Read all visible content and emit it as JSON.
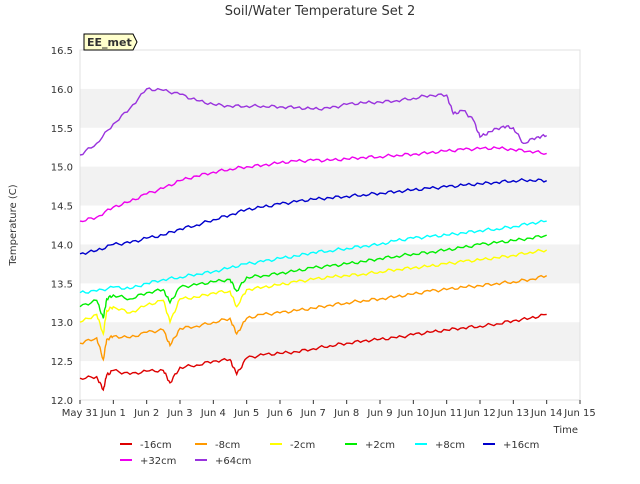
{
  "chart_data": {
    "type": "line",
    "title": "Soil/Water Temperature Set 2",
    "badge": "EE_met",
    "xlabel": "Time",
    "ylabel": "Temperature (C)",
    "xlim": [
      0,
      15
    ],
    "ylim": [
      12.0,
      16.5
    ],
    "grid": "alternating horizontal bands",
    "legend_position": "bottom",
    "x_ticks": [
      {
        "value": 0,
        "label": "May 31"
      },
      {
        "value": 1,
        "label": "Jun 1"
      },
      {
        "value": 2,
        "label": "Jun 2"
      },
      {
        "value": 3,
        "label": "Jun 3"
      },
      {
        "value": 4,
        "label": "Jun 4"
      },
      {
        "value": 5,
        "label": "Jun 5"
      },
      {
        "value": 6,
        "label": "Jun 6"
      },
      {
        "value": 7,
        "label": "Jun 7"
      },
      {
        "value": 8,
        "label": "Jun 8"
      },
      {
        "value": 9,
        "label": "Jun 9"
      },
      {
        "value": 10,
        "label": "Jun 10"
      },
      {
        "value": 11,
        "label": "Jun 11"
      },
      {
        "value": 12,
        "label": "Jun 12"
      },
      {
        "value": 13,
        "label": "Jun 13"
      },
      {
        "value": 14,
        "label": "Jun 14"
      },
      {
        "value": 15,
        "label": "Jun 15"
      }
    ],
    "y_ticks": [
      12.0,
      12.5,
      13.0,
      13.5,
      14.0,
      14.5,
      15.0,
      15.5,
      16.0,
      16.5
    ],
    "series": [
      {
        "name": "-16cm",
        "color": "#dd0000",
        "x": [
          0.0,
          0.5,
          0.7,
          0.8,
          1.0,
          1.5,
          2.0,
          2.5,
          2.7,
          3.0,
          3.5,
          4.0,
          4.5,
          4.7,
          5.0,
          5.5,
          6.0,
          6.5,
          7.0,
          7.5,
          8.0,
          8.5,
          9.0,
          9.5,
          10.0,
          10.5,
          11.0,
          11.5,
          12.0,
          12.5,
          13.0,
          13.5,
          14.0
        ],
        "y": [
          12.28,
          12.3,
          12.13,
          12.32,
          12.38,
          12.33,
          12.37,
          12.38,
          12.22,
          12.42,
          12.45,
          12.5,
          12.52,
          12.33,
          12.54,
          12.58,
          12.6,
          12.62,
          12.66,
          12.7,
          12.73,
          12.76,
          12.78,
          12.8,
          12.84,
          12.87,
          12.9,
          12.93,
          12.95,
          12.98,
          13.02,
          13.05,
          13.1
        ]
      },
      {
        "name": "-8cm",
        "color": "#ff9900",
        "x": [
          0.0,
          0.5,
          0.7,
          0.8,
          1.0,
          1.5,
          2.0,
          2.5,
          2.7,
          3.0,
          3.5,
          4.0,
          4.5,
          4.7,
          5.0,
          5.5,
          6.0,
          6.5,
          7.0,
          7.5,
          8.0,
          8.5,
          9.0,
          9.5,
          10.0,
          10.5,
          11.0,
          11.5,
          12.0,
          12.5,
          13.0,
          13.5,
          14.0
        ],
        "y": [
          12.73,
          12.8,
          12.52,
          12.78,
          12.82,
          12.8,
          12.87,
          12.9,
          12.7,
          12.92,
          12.95,
          13.0,
          13.05,
          12.85,
          13.05,
          13.1,
          13.12,
          13.15,
          13.18,
          13.22,
          13.25,
          13.28,
          13.3,
          13.33,
          13.36,
          13.4,
          13.42,
          13.45,
          13.47,
          13.5,
          13.52,
          13.55,
          13.6
        ]
      },
      {
        "name": "-2cm",
        "color": "#ffff00",
        "x": [
          0.0,
          0.5,
          0.7,
          0.8,
          1.0,
          1.5,
          2.0,
          2.5,
          2.7,
          3.0,
          3.5,
          4.0,
          4.5,
          4.7,
          5.0,
          5.5,
          6.0,
          6.5,
          7.0,
          7.5,
          8.0,
          8.5,
          9.0,
          9.5,
          10.0,
          10.5,
          11.0,
          11.5,
          12.0,
          12.5,
          13.0,
          13.5,
          14.0
        ],
        "y": [
          13.0,
          13.1,
          12.85,
          13.15,
          13.2,
          13.12,
          13.22,
          13.28,
          13.0,
          13.3,
          13.32,
          13.38,
          13.4,
          13.2,
          13.42,
          13.45,
          13.48,
          13.52,
          13.55,
          13.58,
          13.6,
          13.62,
          13.65,
          13.68,
          13.7,
          13.72,
          13.75,
          13.78,
          13.8,
          13.83,
          13.86,
          13.9,
          13.93
        ]
      },
      {
        "name": "+2cm",
        "color": "#00ee00",
        "x": [
          0.0,
          0.5,
          0.7,
          0.8,
          1.0,
          1.5,
          2.0,
          2.5,
          2.7,
          3.0,
          3.5,
          4.0,
          4.5,
          4.7,
          5.0,
          5.5,
          6.0,
          6.5,
          7.0,
          7.5,
          8.0,
          8.5,
          9.0,
          9.5,
          10.0,
          10.5,
          11.0,
          11.5,
          12.0,
          12.5,
          13.0,
          13.5,
          14.0
        ],
        "y": [
          13.2,
          13.28,
          13.05,
          13.3,
          13.35,
          13.3,
          13.38,
          13.42,
          13.25,
          13.45,
          13.48,
          13.52,
          13.55,
          13.4,
          13.58,
          13.6,
          13.63,
          13.66,
          13.7,
          13.72,
          13.75,
          13.78,
          13.82,
          13.85,
          13.88,
          13.9,
          13.93,
          13.96,
          14.0,
          14.02,
          14.05,
          14.08,
          14.12
        ]
      },
      {
        "name": "+8cm",
        "color": "#00ffff",
        "x": [
          0.0,
          0.5,
          1.0,
          1.5,
          2.0,
          2.5,
          3.0,
          3.5,
          4.0,
          4.5,
          5.0,
          5.5,
          6.0,
          6.5,
          7.0,
          7.5,
          8.0,
          8.5,
          9.0,
          9.5,
          10.0,
          10.5,
          11.0,
          11.5,
          12.0,
          12.5,
          13.0,
          13.5,
          14.0
        ],
        "y": [
          13.38,
          13.4,
          13.45,
          13.43,
          13.5,
          13.55,
          13.58,
          13.62,
          13.65,
          13.7,
          13.75,
          13.78,
          13.82,
          13.85,
          13.9,
          13.92,
          13.95,
          13.98,
          14.0,
          14.05,
          14.08,
          14.1,
          14.12,
          14.15,
          14.18,
          14.2,
          14.23,
          14.27,
          14.3
        ]
      },
      {
        "name": "+16cm",
        "color": "#0000cc",
        "x": [
          0.0,
          0.5,
          1.0,
          1.5,
          2.0,
          2.5,
          3.0,
          3.5,
          4.0,
          4.5,
          5.0,
          5.5,
          6.0,
          6.5,
          7.0,
          7.5,
          8.0,
          8.5,
          9.0,
          9.5,
          10.0,
          10.5,
          11.0,
          11.5,
          12.0,
          12.5,
          13.0,
          13.5,
          14.0
        ],
        "y": [
          13.88,
          13.92,
          14.0,
          14.02,
          14.08,
          14.12,
          14.2,
          14.25,
          14.32,
          14.38,
          14.45,
          14.48,
          14.52,
          14.55,
          14.58,
          14.6,
          14.62,
          14.64,
          14.66,
          14.68,
          14.7,
          14.72,
          14.74,
          14.76,
          14.78,
          14.8,
          14.82,
          14.83,
          14.82
        ]
      },
      {
        "name": "+32cm",
        "color": "#ee00ee",
        "x": [
          0.0,
          0.5,
          1.0,
          1.5,
          2.0,
          2.5,
          3.0,
          3.5,
          4.0,
          4.5,
          5.0,
          5.5,
          6.0,
          6.5,
          7.0,
          7.5,
          8.0,
          8.5,
          9.0,
          9.5,
          10.0,
          10.5,
          11.0,
          11.5,
          12.0,
          12.5,
          13.0,
          13.5,
          14.0
        ],
        "y": [
          14.3,
          14.35,
          14.48,
          14.55,
          14.65,
          14.72,
          14.82,
          14.88,
          14.93,
          14.97,
          15.0,
          15.02,
          15.05,
          15.07,
          15.08,
          15.08,
          15.1,
          15.12,
          15.13,
          15.15,
          15.16,
          15.18,
          15.2,
          15.22,
          15.23,
          15.24,
          15.22,
          15.2,
          15.17
        ]
      },
      {
        "name": "+64cm",
        "color": "#9933dd",
        "x": [
          0.0,
          0.5,
          1.0,
          1.5,
          2.0,
          2.5,
          3.0,
          3.5,
          4.0,
          4.5,
          5.0,
          5.5,
          6.0,
          6.5,
          7.0,
          7.5,
          8.0,
          8.5,
          9.0,
          9.5,
          10.0,
          10.5,
          11.0,
          11.2,
          11.5,
          11.8,
          12.0,
          12.3,
          12.7,
          13.0,
          13.3,
          13.7,
          14.0
        ],
        "y": [
          15.15,
          15.3,
          15.55,
          15.75,
          16.0,
          15.98,
          15.93,
          15.85,
          15.8,
          15.78,
          15.78,
          15.78,
          15.77,
          15.76,
          15.74,
          15.75,
          15.8,
          15.82,
          15.83,
          15.85,
          15.88,
          15.92,
          15.92,
          15.68,
          15.72,
          15.6,
          15.38,
          15.45,
          15.52,
          15.5,
          15.3,
          15.38,
          15.4
        ]
      }
    ]
  }
}
